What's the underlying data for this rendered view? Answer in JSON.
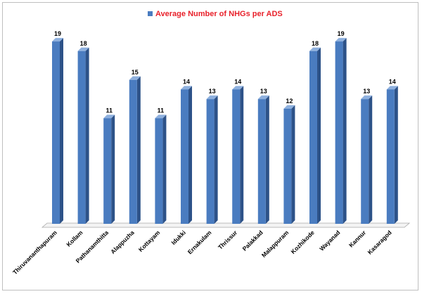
{
  "chart_data": {
    "type": "bar",
    "title": "",
    "xlabel": "",
    "ylabel": "",
    "legend": {
      "position": "top",
      "entries": [
        "Average Number of NHGs per ADS"
      ]
    },
    "grid": false,
    "ylim": [
      0,
      20
    ],
    "categories": [
      "Thiruvananthapuram",
      "Kollam",
      "Pathanamthitta",
      "Alappuzha",
      "Kottayam",
      "Idukki",
      "Ernakulam",
      "Thrissur",
      "Palakkad",
      "Malappuram",
      "Kozhikode",
      "Wayanad",
      "Kannur",
      "Kasaragod"
    ],
    "series": [
      {
        "name": "Average Number of NHGs per ADS",
        "values": [
          19,
          18,
          11,
          15,
          11,
          14,
          13,
          14,
          13,
          12,
          18,
          19,
          13,
          14
        ]
      }
    ],
    "colors": {
      "bar_front": "#4a7cc0",
      "bar_side": "#2d5288",
      "bar_top": "#8eb0de",
      "legend_text": "#e8202a"
    }
  }
}
